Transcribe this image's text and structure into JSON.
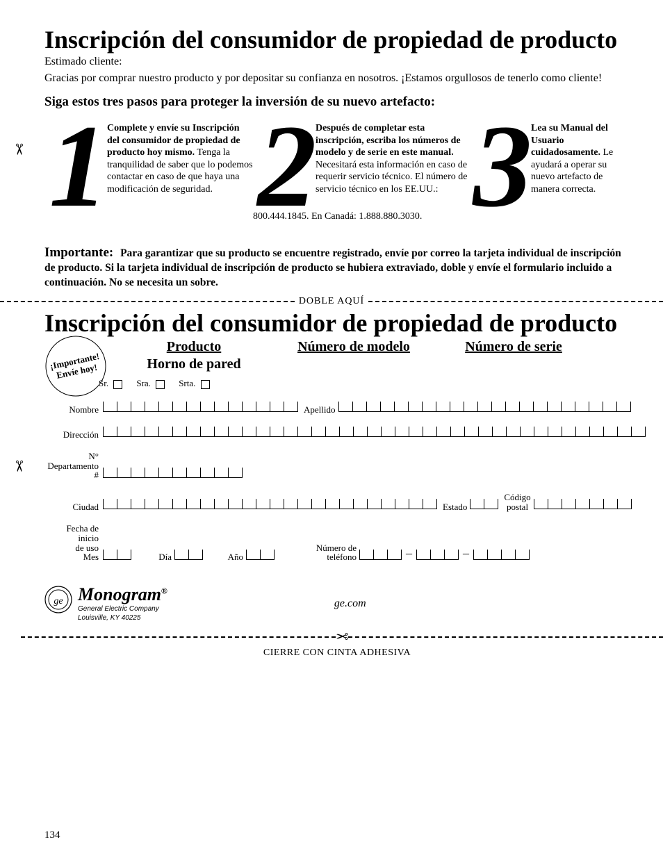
{
  "title": "Inscripción del consumidor de propiedad de producto",
  "greeting": "Estimado cliente:",
  "thanks": "Gracias por comprar nuestro producto y por depositar su confianza en nosotros. ¡Estamos orgullosos de tenerlo como cliente!",
  "steps_heading": "Siga estos tres pasos para proteger la inversión de su nuevo artefacto:",
  "step1": {
    "num": "1",
    "bold": "Complete y envíe su Inscripción del consumidor de propiedad de producto hoy mismo.",
    "text": "Tenga la tranquilidad de saber que lo podemos contactar en caso de que haya una modificación de seguridad."
  },
  "step2": {
    "num": "2",
    "bold": "Después de completar esta inscripción, escriba los números de modelo y de serie en este manual.",
    "text": "Necesitará esta información en caso de requerir servicio técnico. El número de servicio técnico en los EE.UU.:",
    "extra": "800.444.1845. En Canadá: 1.888.880.3030."
  },
  "step3": {
    "num": "3",
    "bold": "Lea su Manual del Usuario cuidadosamente.",
    "text": "Le ayudará a operar su nuevo artefacto de manera correcta."
  },
  "important_label": "Importante:",
  "important_text": "Para garantizar que su producto se encuentre registrado, envíe por correo la tarjeta individual de inscripción de producto. Si la tarjeta individual de inscripción de producto se hubiera extraviado, doble y envíe el formulario incluido a continuación. No se necesita un sobre.",
  "fold_here": "DOBLE AQUÍ",
  "title2": "Inscripción del consumidor de propiedad de producto",
  "stamp_line1": "¡Importante!",
  "stamp_line2": "Envíe hoy!",
  "col_product": "Producto",
  "col_model": "Número de modelo",
  "col_serial": "Número de serie",
  "product_name": "Horno de pared",
  "salutations": {
    "sr": "Sr.",
    "sra": "Sra.",
    "srta": "Srta."
  },
  "labels": {
    "nombre": "Nombre",
    "apellido": "Apellido",
    "direccion": "Dirección",
    "apt1": "N°",
    "apt2": "Departamento #",
    "ciudad": "Ciudad",
    "estado": "Estado",
    "zip1": "Código",
    "zip2": "postal",
    "fecha1": "Fecha de inicio",
    "fecha2": "de uso",
    "mes": "Mes",
    "dia": "Día",
    "ano": "Año",
    "telefono1": "Número de",
    "telefono2": "teléfono"
  },
  "brand": {
    "name": "Monogram",
    "reg": "®",
    "company": "General Electric Company",
    "address": "Louisville, KY 40225"
  },
  "url": "ge.com",
  "tape": "CIERRE CON CINTA ADHESIVA",
  "page_number": "134",
  "cells": {
    "nombre": 14,
    "apellido": 21,
    "direccion": 39,
    "apt": 10,
    "ciudad": 24,
    "estado": 2,
    "zip": 7,
    "mes": 2,
    "dia": 2,
    "ano": 2,
    "tel_a": 3,
    "tel_b": 3,
    "tel_c": 4
  },
  "colors": {
    "text": "#000000",
    "bg": "#ffffff"
  }
}
